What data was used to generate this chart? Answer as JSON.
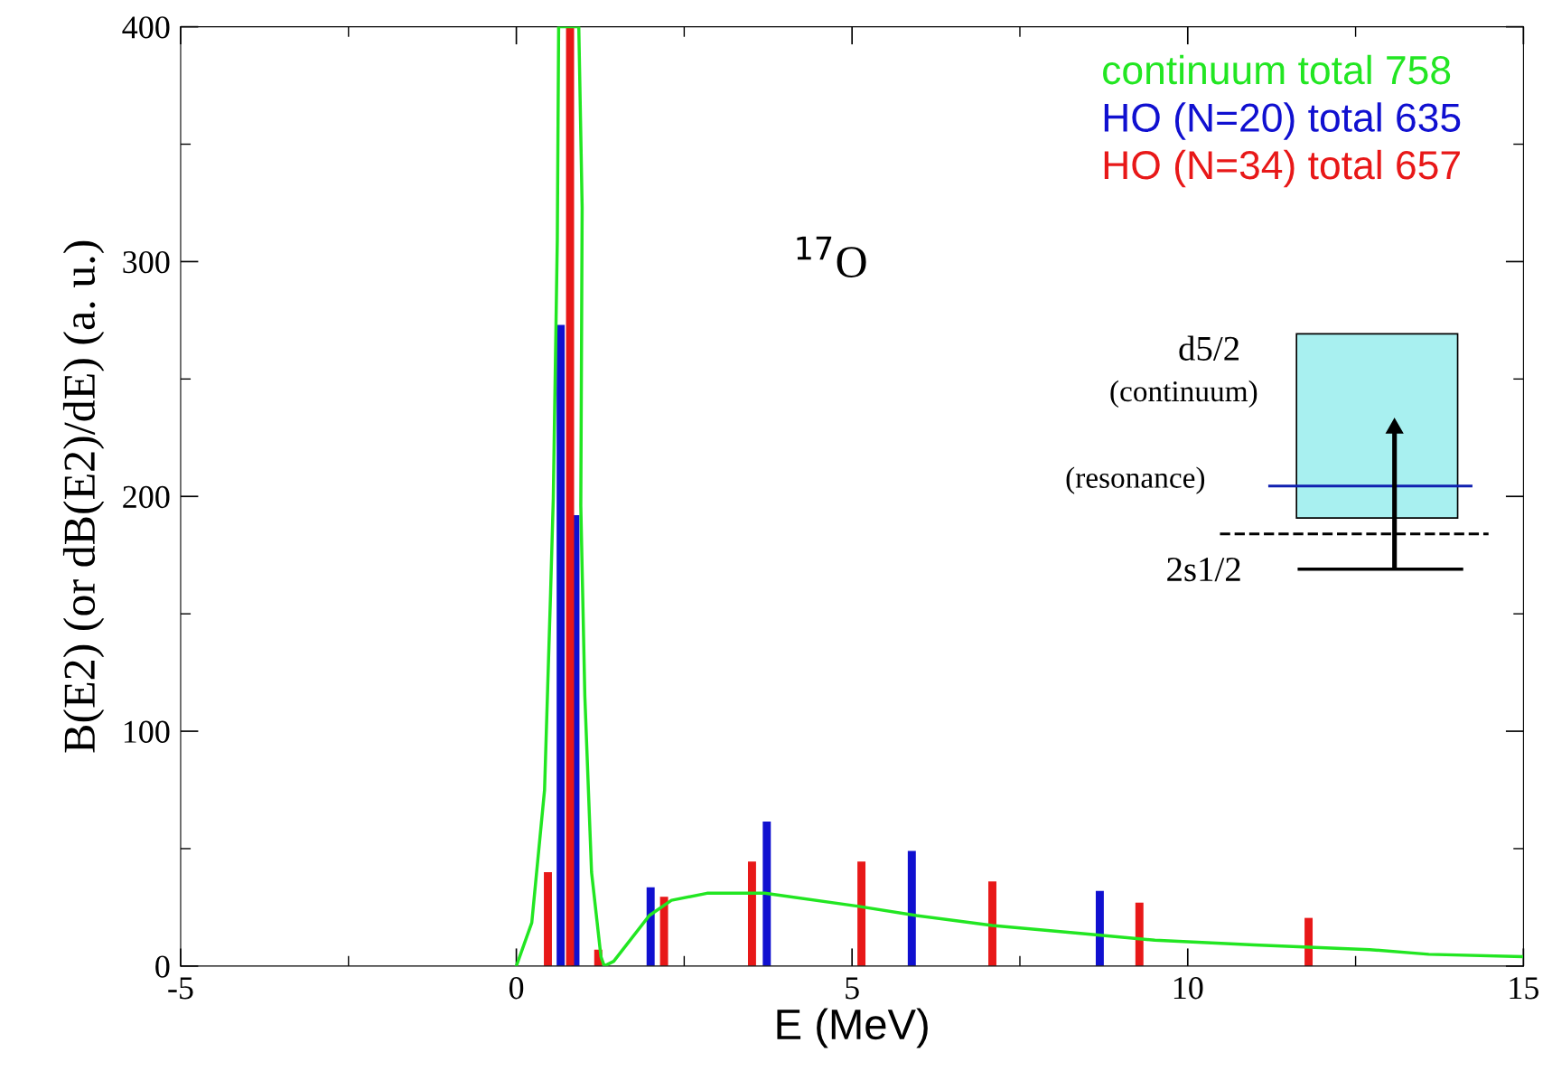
{
  "chart_data": {
    "type": "bar",
    "xlabel": "E (MeV)",
    "ylabel": "B(E2) (or dB(E2)/dE) (a. u.)",
    "xlim": [
      -5,
      15
    ],
    "xticks": [
      -5,
      {
        "value": -2.5,
        "label": null
      },
      0,
      {
        "value": 2.5,
        "label": null
      },
      5,
      {
        "value": 7.5,
        "label": null
      },
      10,
      {
        "value": 12.5,
        "label": null
      },
      15
    ],
    "ylim": [
      0,
      400
    ],
    "yticks": [
      0,
      {
        "value": 50,
        "label": null
      },
      100,
      {
        "value": 150,
        "label": null
      },
      200,
      {
        "value": 250,
        "label": null
      },
      300,
      {
        "value": 350,
        "label": null
      },
      400
    ],
    "grid": false,
    "legend": "top right",
    "annotations": [
      "$^{17}$O",
      "d5/2",
      "(continuum)",
      "(resonance)",
      "2s1/2"
    ],
    "series": [
      {
        "name": "continuum total 758",
        "type": "line",
        "color": "#22e622",
        "x": [
          0,
          0.23,
          0.42,
          0.51,
          0.55,
          0.61,
          0.63,
          0.93,
          0.98,
          0.96,
          1.02,
          1.12,
          1.26,
          1.31,
          1.45,
          1.98,
          2.31,
          2.84,
          3.7,
          5.08,
          5.96,
          7.09,
          8.55,
          9.51,
          10.99,
          12.71,
          13.59,
          14.97
        ],
        "values": [
          0,
          18.5,
          75,
          159,
          199,
          309,
          400,
          400,
          323,
          196,
          115,
          40,
          4,
          0,
          2,
          21.5,
          28,
          31,
          31,
          25.5,
          21.5,
          17.3,
          13.5,
          11,
          9,
          7,
          5,
          4
        ]
      },
      {
        "name": "HO (N=20) total 635",
        "color": "#1010d0",
        "x": [
          0.66,
          0.88,
          2.0,
          3.73,
          5.89,
          8.69
        ],
        "values": [
          273,
          192,
          33.5,
          61.5,
          49,
          32
        ]
      },
      {
        "name": "HO (N=34) total 657",
        "color": "#e81818",
        "x": [
          0.47,
          0.8,
          1.22,
          2.2,
          3.51,
          5.14,
          7.09,
          9.28,
          11.8
        ],
        "values": [
          40,
          400,
          7,
          29.5,
          44.5,
          44.5,
          36,
          27,
          20.5
        ]
      }
    ]
  }
}
